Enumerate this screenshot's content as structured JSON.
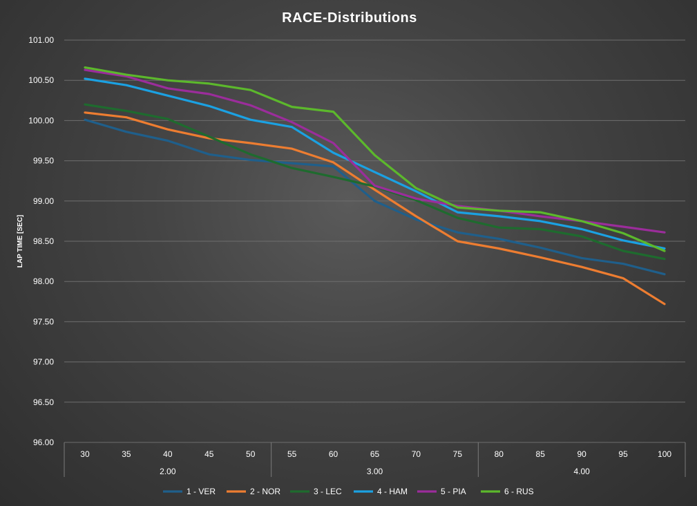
{
  "chart_data": {
    "type": "line",
    "title": "RACE-Distributions",
    "ylabel": "LAP TIME [SEC]",
    "xlabel": "",
    "ylim": [
      96.0,
      101.0
    ],
    "yticks": [
      "96.00",
      "96.50",
      "97.00",
      "97.50",
      "98.00",
      "98.50",
      "99.00",
      "99.50",
      "100.00",
      "100.50",
      "101.00"
    ],
    "ytick_values": [
      96.0,
      96.5,
      97.0,
      97.5,
      98.0,
      98.5,
      99.0,
      99.5,
      100.0,
      100.5,
      101.0
    ],
    "categories": [
      "30",
      "35",
      "40",
      "45",
      "50",
      "55",
      "60",
      "65",
      "70",
      "75",
      "80",
      "85",
      "90",
      "95",
      "100"
    ],
    "groups": [
      {
        "label": "2.00",
        "count": 5
      },
      {
        "label": "3.00",
        "count": 5
      },
      {
        "label": "4.00",
        "count": 5
      }
    ],
    "grid": true,
    "legend_position": "bottom",
    "series": [
      {
        "name": "1 - VER",
        "color": "#1f5f8b",
        "values": [
          100.01,
          99.86,
          99.75,
          99.58,
          99.51,
          99.47,
          99.43,
          99.0,
          98.77,
          98.61,
          98.53,
          98.42,
          98.29,
          98.22,
          98.09
        ]
      },
      {
        "name": "2 - NOR",
        "color": "#ed7d31",
        "values": [
          100.1,
          100.04,
          99.89,
          99.78,
          99.72,
          99.65,
          99.48,
          99.14,
          98.81,
          98.5,
          98.41,
          98.3,
          98.18,
          98.04,
          97.72
        ]
      },
      {
        "name": "3 - LEC",
        "color": "#1e6b2e",
        "values": [
          100.2,
          100.12,
          100.02,
          99.8,
          99.58,
          99.41,
          99.3,
          99.18,
          99.01,
          98.79,
          98.67,
          98.65,
          98.56,
          98.38,
          98.28
        ]
      },
      {
        "name": "4 - HAM",
        "color": "#1ba1e2",
        "values": [
          100.52,
          100.44,
          100.31,
          100.18,
          100.01,
          99.92,
          99.6,
          99.36,
          99.12,
          98.86,
          98.81,
          98.75,
          98.65,
          98.51,
          98.41
        ]
      },
      {
        "name": "5 - PIA",
        "color": "#9b2d9b",
        "values": [
          100.63,
          100.55,
          100.4,
          100.33,
          100.19,
          99.98,
          99.72,
          99.19,
          99.03,
          98.94,
          98.88,
          98.81,
          98.75,
          98.68,
          98.61
        ]
      },
      {
        "name": "6 - RUS",
        "color": "#5cb82c",
        "values": [
          100.66,
          100.57,
          100.5,
          100.46,
          100.38,
          100.17,
          100.11,
          99.57,
          99.16,
          98.92,
          98.88,
          98.86,
          98.75,
          98.6,
          98.38
        ]
      }
    ]
  }
}
